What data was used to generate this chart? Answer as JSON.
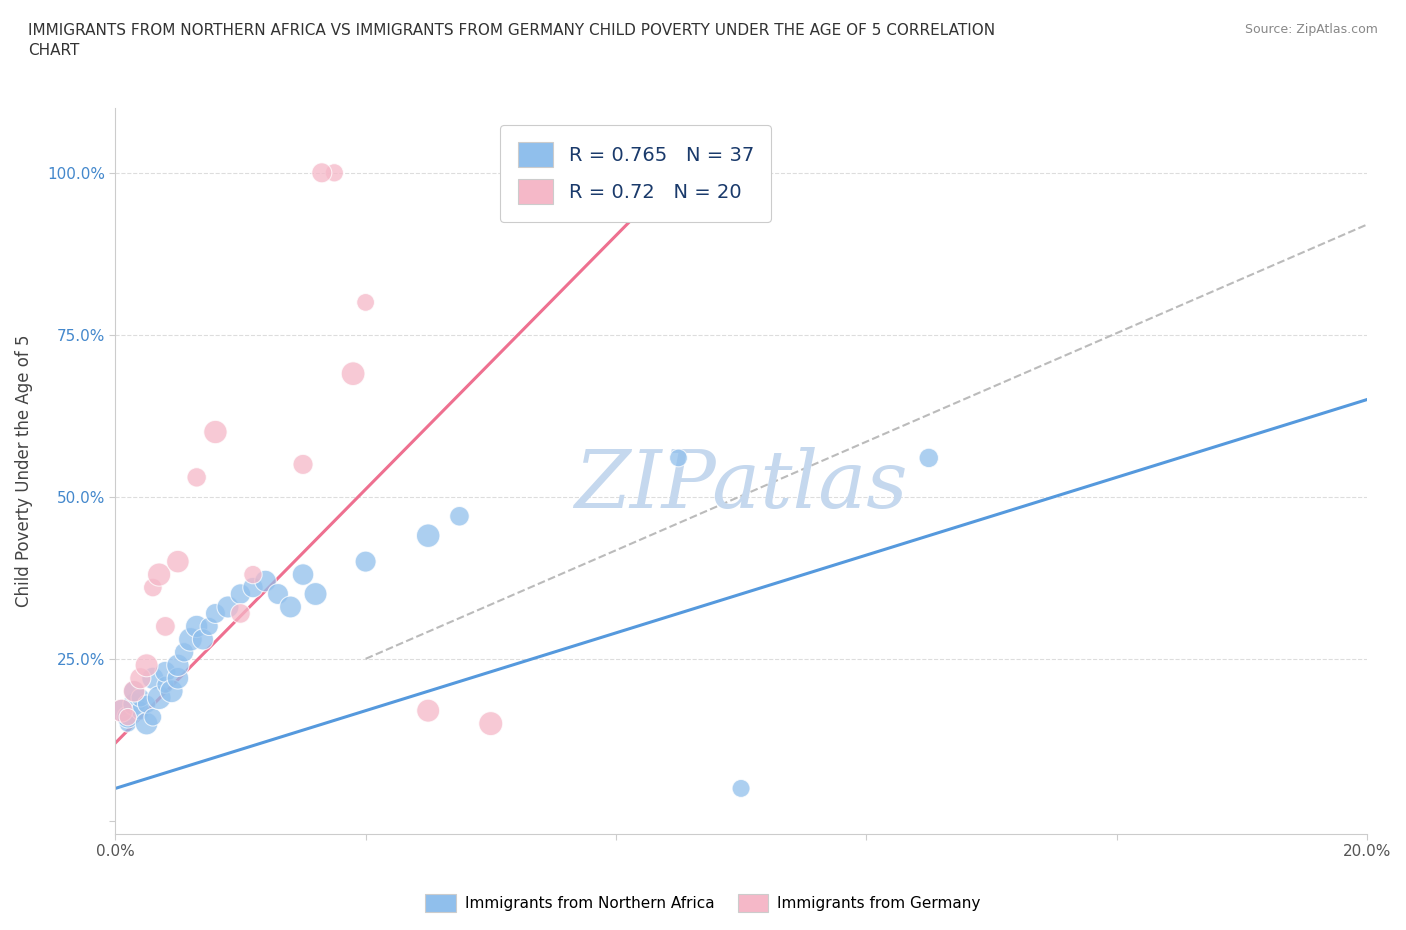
{
  "title": "IMMIGRANTS FROM NORTHERN AFRICA VS IMMIGRANTS FROM GERMANY CHILD POVERTY UNDER THE AGE OF 5 CORRELATION\nCHART",
  "source_text": "Source: ZipAtlas.com",
  "ylabel": "Child Poverty Under the Age of 5",
  "xlim": [
    0.0,
    0.2
  ],
  "ylim": [
    -0.02,
    1.1
  ],
  "xticks": [
    0.0,
    0.04,
    0.08,
    0.12,
    0.16,
    0.2
  ],
  "yticks": [
    0.0,
    0.25,
    0.5,
    0.75,
    1.0
  ],
  "yticklabels": [
    "",
    "25.0%",
    "50.0%",
    "75.0%",
    "100.0%"
  ],
  "r_blue": 0.765,
  "n_blue": 37,
  "r_pink": 0.72,
  "n_pink": 20,
  "blue_color": "#90bfec",
  "pink_color": "#f5b8c8",
  "blue_line_color": "#5599dd",
  "pink_line_color": "#ee7090",
  "ref_line_color": "#bbbbbb",
  "watermark": "ZIPatlas",
  "watermark_color": "#c5d8ee",
  "legend_label_blue": "Immigrants from Northern Africa",
  "legend_label_pink": "Immigrants from Germany",
  "blue_scatter_x": [
    0.001,
    0.002,
    0.002,
    0.003,
    0.003,
    0.004,
    0.004,
    0.005,
    0.005,
    0.006,
    0.006,
    0.007,
    0.008,
    0.008,
    0.009,
    0.01,
    0.01,
    0.011,
    0.012,
    0.013,
    0.014,
    0.015,
    0.016,
    0.018,
    0.02,
    0.022,
    0.024,
    0.026,
    0.028,
    0.03,
    0.032,
    0.04,
    0.05,
    0.055,
    0.09,
    0.13,
    0.1
  ],
  "blue_scatter_y": [
    0.17,
    0.15,
    0.16,
    0.18,
    0.2,
    0.17,
    0.19,
    0.15,
    0.18,
    0.16,
    0.22,
    0.19,
    0.21,
    0.23,
    0.2,
    0.22,
    0.24,
    0.26,
    0.28,
    0.3,
    0.28,
    0.3,
    0.32,
    0.33,
    0.35,
    0.36,
    0.37,
    0.35,
    0.33,
    0.38,
    0.35,
    0.4,
    0.44,
    0.47,
    0.56,
    0.56,
    0.05
  ],
  "pink_scatter_x": [
    0.001,
    0.002,
    0.003,
    0.004,
    0.005,
    0.006,
    0.007,
    0.008,
    0.01,
    0.013,
    0.016,
    0.02,
    0.022,
    0.03,
    0.04,
    0.05,
    0.035,
    0.033,
    0.038,
    0.06
  ],
  "pink_scatter_y": [
    0.17,
    0.16,
    0.2,
    0.22,
    0.24,
    0.36,
    0.38,
    0.3,
    0.4,
    0.53,
    0.6,
    0.32,
    0.38,
    0.55,
    0.8,
    0.17,
    1.0,
    1.0,
    0.69,
    0.15
  ],
  "blue_line_x": [
    0.0,
    0.2
  ],
  "blue_line_y": [
    0.05,
    0.65
  ],
  "pink_line_x": [
    0.0,
    0.095
  ],
  "pink_line_y": [
    0.12,
    1.05
  ],
  "ref_line_x": [
    0.04,
    0.2
  ],
  "ref_line_y": [
    0.25,
    0.92
  ],
  "background_color": "#ffffff",
  "grid_color": "#dddddd"
}
